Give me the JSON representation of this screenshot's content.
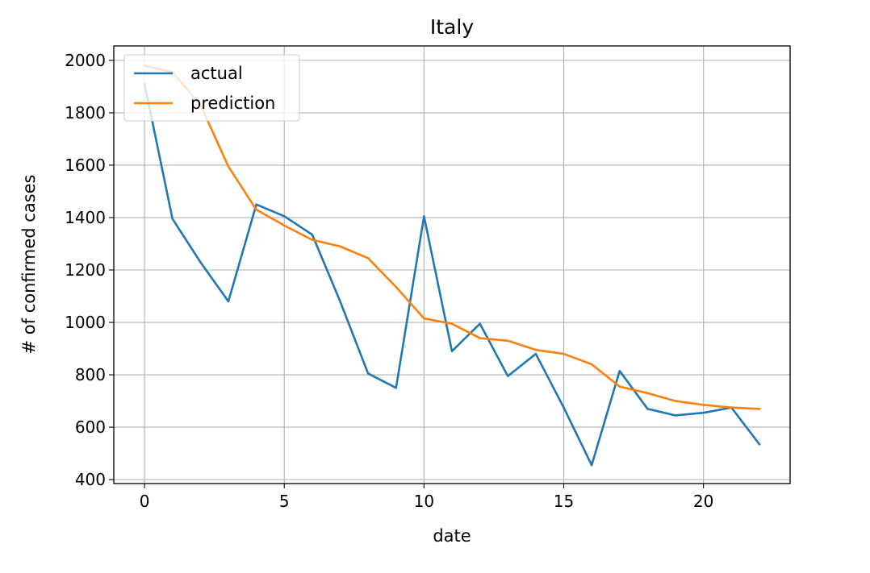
{
  "chart_data": {
    "type": "line",
    "title": "Italy",
    "xlabel": "date",
    "ylabel": "# of confirmed cases",
    "xlim": [
      -1.1,
      23.1
    ],
    "ylim": [
      385,
      2055
    ],
    "xticks": [
      0,
      5,
      10,
      15,
      20
    ],
    "yticks": [
      400,
      600,
      800,
      1000,
      1200,
      1400,
      1600,
      1800,
      2000
    ],
    "grid": true,
    "legend_position": "upper-left",
    "x": [
      0,
      1,
      2,
      3,
      4,
      5,
      6,
      7,
      8,
      9,
      10,
      11,
      12,
      13,
      14,
      15,
      16,
      17,
      18,
      19,
      20,
      21,
      22
    ],
    "series": [
      {
        "name": "actual",
        "color": "#1f77b4",
        "values": [
          1910,
          1395,
          1230,
          1080,
          1450,
          1405,
          1335,
          1080,
          805,
          750,
          1405,
          890,
          995,
          795,
          880,
          675,
          455,
          815,
          670,
          645,
          655,
          675,
          535
        ]
      },
      {
        "name": "prediction",
        "color": "#ff7f0e",
        "values": [
          1980,
          1955,
          1830,
          1595,
          1430,
          1370,
          1315,
          1290,
          1245,
          1135,
          1015,
          995,
          940,
          930,
          895,
          880,
          840,
          755,
          730,
          700,
          685,
          675,
          670
        ]
      }
    ]
  }
}
